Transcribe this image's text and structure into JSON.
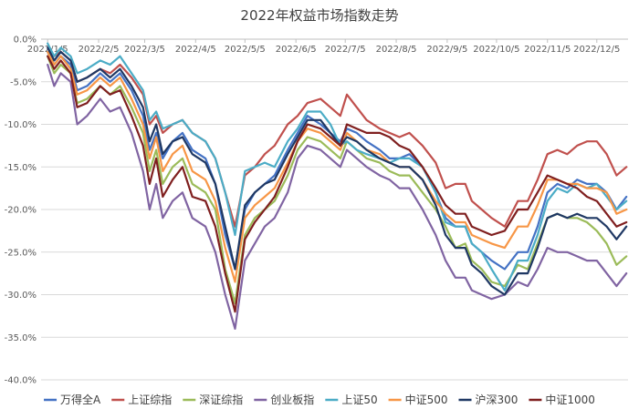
{
  "chart_data": {
    "type": "line",
    "title": "2022年权益市场指数走势",
    "xlabel": "",
    "ylabel": "",
    "ylim": [
      -40,
      0
    ],
    "yticks": [
      0,
      -5,
      -10,
      -15,
      -20,
      -25,
      -30,
      -35,
      -40
    ],
    "ytick_labels": [
      "0.0%",
      "-5.0%",
      "-10.0%",
      "-15.0%",
      "-20.0%",
      "-25.0%",
      "-30.0%",
      "-35.0%",
      "-40.0%"
    ],
    "xlim": [
      0,
      357
    ],
    "xticks": [
      {
        "label": "2022/1/5",
        "day": 4
      },
      {
        "label": "2022/2/5",
        "day": 35
      },
      {
        "label": "2022/3/5",
        "day": 63
      },
      {
        "label": "2022/4/5",
        "day": 94
      },
      {
        "label": "2022/5/5",
        "day": 124
      },
      {
        "label": "2022/6/5",
        "day": 155
      },
      {
        "label": "2022/7/5",
        "day": 185
      },
      {
        "label": "2022/8/5",
        "day": 216
      },
      {
        "label": "2022/9/5",
        "day": 247
      },
      {
        "label": "2022/10/5",
        "day": 277
      },
      {
        "label": "2022/11/5",
        "day": 308
      },
      {
        "label": "2022/12/5",
        "day": 338
      }
    ],
    "grid": true,
    "legend": "bottom",
    "x": [
      4,
      8,
      12,
      18,
      22,
      28,
      36,
      42,
      48,
      55,
      62,
      66,
      70,
      74,
      80,
      86,
      92,
      100,
      106,
      112,
      118,
      124,
      130,
      136,
      142,
      150,
      156,
      162,
      170,
      176,
      182,
      186,
      192,
      198,
      206,
      212,
      218,
      224,
      232,
      240,
      246,
      252,
      258,
      262,
      268,
      274,
      282,
      290,
      296,
      302,
      308,
      314,
      320,
      326,
      332,
      338,
      344,
      350,
      356
    ],
    "series": [
      {
        "name": "万得全A",
        "color": "#4472c4",
        "values": [
          -1.5,
          -3,
          -2,
          -3,
          -6,
          -5.5,
          -4,
          -5,
          -4,
          -6,
          -9,
          -13,
          -11,
          -14,
          -12,
          -11,
          -13,
          -14,
          -17,
          -23,
          -27,
          -20,
          -18,
          -17,
          -16,
          -13,
          -11,
          -9,
          -10,
          -11,
          -12,
          -10.5,
          -11,
          -12,
          -13,
          -14,
          -14,
          -13.5,
          -15,
          -18,
          -21,
          -22,
          -22,
          -24,
          -25,
          -26,
          -27,
          -25,
          -25,
          -22,
          -18,
          -17,
          -17.5,
          -16.5,
          -17,
          -17,
          -18,
          -20,
          -18.5
        ]
      },
      {
        "name": "上证综指",
        "color": "#c0504d",
        "values": [
          -1,
          -2,
          -1.5,
          -2.5,
          -5,
          -4.5,
          -3.5,
          -4,
          -3,
          -4.5,
          -6.5,
          -10,
          -9,
          -11,
          -10,
          -9.5,
          -11,
          -12,
          -14,
          -18,
          -22,
          -16,
          -15,
          -13.5,
          -12.5,
          -10,
          -9,
          -7.5,
          -7,
          -8,
          -9,
          -6.5,
          -8,
          -9.5,
          -10.5,
          -11,
          -11.5,
          -11,
          -12.5,
          -14.5,
          -17.5,
          -17,
          -17,
          -19,
          -20,
          -21,
          -22,
          -19,
          -19,
          -16.5,
          -13.5,
          -13,
          -13.5,
          -12.5,
          -12,
          -12,
          -13.5,
          -16,
          -15
        ]
      },
      {
        "name": "深证综指",
        "color": "#9bbb59",
        "values": [
          -2,
          -4,
          -3,
          -4,
          -7.5,
          -7,
          -5.5,
          -6.5,
          -5.5,
          -8,
          -11,
          -15.5,
          -13,
          -17,
          -15,
          -14,
          -17,
          -18,
          -20,
          -27,
          -31,
          -23,
          -21,
          -20,
          -19,
          -16,
          -13,
          -11.5,
          -12,
          -13,
          -14,
          -12,
          -13,
          -14,
          -14.5,
          -15.5,
          -16,
          -16,
          -18,
          -20,
          -22,
          -24.5,
          -24,
          -26,
          -27,
          -28.5,
          -29,
          -26.5,
          -27,
          -24,
          -21,
          -20.5,
          -21,
          -21,
          -21.5,
          -22.5,
          -24,
          -26.5,
          -25.5
        ]
      },
      {
        "name": "创业板指",
        "color": "#8064a2",
        "values": [
          -3,
          -5.5,
          -4,
          -5,
          -10,
          -9,
          -7,
          -8.5,
          -8,
          -11,
          -15.5,
          -20,
          -17,
          -21,
          -19,
          -18,
          -21,
          -22,
          -25,
          -30,
          -34,
          -26,
          -24,
          -22,
          -21,
          -18,
          -14,
          -12.5,
          -13,
          -14,
          -15,
          -13,
          -14,
          -15,
          -16,
          -16.5,
          -17.5,
          -17.5,
          -20,
          -23,
          -26,
          -28,
          -28,
          -29.5,
          -30,
          -30.5,
          -30,
          -28.5,
          -29,
          -27,
          -24.5,
          -25,
          -25,
          -25.5,
          -26,
          -26,
          -27.5,
          -29,
          -27.5
        ]
      },
      {
        "name": "上证50",
        "color": "#4bacc6",
        "values": [
          -0.5,
          -2,
          -1,
          -2,
          -4,
          -3.5,
          -2.5,
          -3,
          -2,
          -4,
          -6,
          -9.5,
          -8.5,
          -10.5,
          -10,
          -9.5,
          -11,
          -12,
          -14,
          -18,
          -23,
          -15.5,
          -15,
          -14.5,
          -15,
          -12,
          -10.5,
          -8.5,
          -8.5,
          -10,
          -12.5,
          -12,
          -13,
          -13.5,
          -14,
          -14.5,
          -14,
          -14,
          -15,
          -18,
          -21.5,
          -22,
          -22,
          -24,
          -25,
          -27,
          -29.5,
          -26,
          -26,
          -23,
          -19,
          -17.5,
          -18,
          -17,
          -17.5,
          -17,
          -18.5,
          -20,
          -19
        ]
      },
      {
        "name": "中证500",
        "color": "#f79646",
        "values": [
          -1.5,
          -3,
          -2,
          -3.5,
          -6.5,
          -6,
          -4.5,
          -5.5,
          -4.5,
          -7,
          -10,
          -14,
          -11.5,
          -15.5,
          -13.5,
          -12.5,
          -15.5,
          -16.5,
          -19,
          -24.5,
          -28.5,
          -21,
          -19.5,
          -18.5,
          -17.5,
          -14.5,
          -12,
          -10.5,
          -11,
          -12,
          -13,
          -11,
          -12,
          -13,
          -13.5,
          -14.5,
          -15,
          -15,
          -16.5,
          -19,
          -20.5,
          -21.5,
          -21.5,
          -23,
          -23.5,
          -24,
          -24.5,
          -22,
          -22,
          -19.5,
          -16.5,
          -16.5,
          -17,
          -17,
          -17.5,
          -17.5,
          -18,
          -20.5,
          -20
        ]
      },
      {
        "name": "沪深300",
        "color": "#1f3864",
        "values": [
          -1,
          -2.5,
          -1.5,
          -2.5,
          -5,
          -4.5,
          -3.5,
          -4.5,
          -3.5,
          -5.5,
          -8,
          -12,
          -10,
          -13.5,
          -12,
          -11.5,
          -13.5,
          -14.5,
          -17,
          -22,
          -27,
          -19.5,
          -18,
          -17,
          -16.5,
          -13.5,
          -11.5,
          -9.5,
          -9.5,
          -11,
          -12.5,
          -11.5,
          -12,
          -13,
          -14,
          -14.5,
          -15,
          -15,
          -16.5,
          -19.5,
          -23,
          -24.5,
          -24.5,
          -26.5,
          -27.5,
          -29,
          -30,
          -27.5,
          -27.5,
          -24.5,
          -21,
          -20.5,
          -21,
          -20.5,
          -21,
          -21,
          -22,
          -23.5,
          -22
        ]
      },
      {
        "name": "中证1000",
        "color": "#7f1f1f",
        "values": [
          -2,
          -3.5,
          -2.5,
          -4,
          -8,
          -7.5,
          -5.5,
          -6.5,
          -6,
          -9,
          -12.5,
          -17,
          -14,
          -18.5,
          -16.5,
          -15,
          -18.5,
          -19,
          -22,
          -27.5,
          -32,
          -23.5,
          -21.5,
          -20,
          -18.5,
          -15,
          -12,
          -10,
          -10.5,
          -11.5,
          -12.5,
          -10,
          -10.5,
          -11,
          -11,
          -11.5,
          -12.5,
          -13,
          -15,
          -17.5,
          -19.5,
          -20.5,
          -20.5,
          -22,
          -22.5,
          -23,
          -22.5,
          -20,
          -20,
          -18,
          -16,
          -16.5,
          -17,
          -17.5,
          -18.5,
          -19,
          -20.5,
          -22,
          -21.5
        ]
      }
    ]
  }
}
